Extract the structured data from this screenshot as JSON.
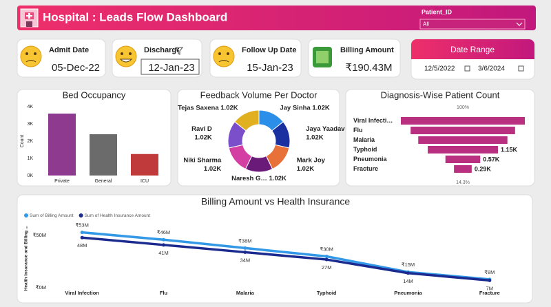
{
  "header": {
    "title": "Hospital : Leads Flow Dashboard",
    "filter_label": "Patient_ID",
    "filter_value": "All"
  },
  "cards": [
    {
      "label": "Admit Date",
      "value": "05-Dec-22"
    },
    {
      "label": "Discharge Date",
      "value": "12-Jan-23"
    },
    {
      "label": "Follow Up Date",
      "value": "15-Jan-23"
    },
    {
      "label": "Billing Amount",
      "value": "₹190.43M"
    }
  ],
  "date_range": {
    "title": "Date Range",
    "start": "12/5/2022",
    "end": "3/6/2024"
  },
  "chart_data": [
    {
      "type": "bar",
      "title": "Bed Occupancy",
      "y_label": "Count",
      "categories": [
        "Private",
        "General",
        "ICU"
      ],
      "values": [
        3600,
        2400,
        1250
      ],
      "colors": [
        "#8e3a8e",
        "#6b6b6b",
        "#c0393b"
      ],
      "grid": false,
      "ylim": [
        0,
        4000
      ],
      "yticks": [
        {
          "value": 0,
          "label": "0K"
        },
        {
          "value": 1000,
          "label": "1K"
        },
        {
          "value": 2000,
          "label": "2K"
        },
        {
          "value": 3000,
          "label": "3K"
        },
        {
          "value": 4000,
          "label": "4K"
        }
      ]
    },
    {
      "type": "donut",
      "title": "Feedback Volume Per Doctor",
      "categories": [
        "Jay Sinha",
        "Jaya Yaadav",
        "Mark Joy",
        "Naresh G…",
        "Niki Sharma",
        "Ravi D",
        "Tejas Saxena"
      ],
      "values": [
        1020,
        1020,
        1020,
        1020,
        1020,
        1020,
        1020
      ],
      "value_labels": [
        "1.02K",
        "1.02K",
        "1.02K",
        "1.02K",
        "1.02K",
        "1.02K",
        "1.02K"
      ],
      "colors": [
        "#2b8ee8",
        "#1a2fa0",
        "#e8713a",
        "#6a1b7a",
        "#d33fa3",
        "#7b4fc9",
        "#e0b020"
      ]
    },
    {
      "type": "funnel",
      "title": "Diagnosis-Wise Patient Count",
      "top_label": "100%",
      "bottom_label": "14.3%",
      "categories": [
        "Viral Infecti…",
        "Flu",
        "Malaria",
        "Typhoid",
        "Pneumonia",
        "Fracture"
      ],
      "values": [
        2030,
        1710,
        1460,
        1150,
        570,
        290
      ],
      "value_labels": [
        null,
        null,
        null,
        "1.15K",
        "0.57K",
        "0.29K"
      ],
      "color": "#b8307f"
    },
    {
      "type": "line",
      "title": "Billing Amount vs Health Insurance",
      "y_label": "Health Insurance and Billing ...",
      "categories": [
        "Viral Infection",
        "Flu",
        "Malaria",
        "Typhoid",
        "Pneumonia",
        "Fracture"
      ],
      "grid": false,
      "ylim": [
        0,
        60
      ],
      "yticks": [
        {
          "value": 0,
          "label": "₹0M"
        },
        {
          "value": 50,
          "label": "₹50M"
        }
      ],
      "series": [
        {
          "name": "Sum of Billing Amount",
          "color": "#3399e6",
          "values": [
            53,
            46,
            38,
            30,
            15,
            8
          ],
          "value_labels": [
            "₹53M",
            "₹46M",
            "₹38M",
            "₹30M",
            "₹15M",
            "₹8M"
          ]
        },
        {
          "name": "Sum of Health Insurance Amount",
          "color": "#1a2a8f",
          "values": [
            48,
            41,
            34,
            27,
            14,
            7
          ],
          "value_labels": [
            "48M",
            "41M",
            "34M",
            "27M",
            "14M",
            "7M"
          ]
        }
      ]
    }
  ]
}
